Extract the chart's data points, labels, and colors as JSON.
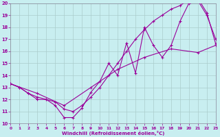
{
  "xlabel": "Windchill (Refroidissement éolien,°C)",
  "bg_color": "#c8eef0",
  "grid_color": "#aacccc",
  "line_color": "#990099",
  "xlim_min": 0,
  "xlim_max": 23,
  "ylim_min": 10,
  "ylim_max": 20,
  "xticks": [
    0,
    1,
    2,
    3,
    4,
    5,
    6,
    7,
    8,
    9,
    10,
    11,
    12,
    13,
    14,
    15,
    16,
    17,
    18,
    19,
    20,
    21,
    22,
    23
  ],
  "yticks": [
    10,
    11,
    12,
    13,
    14,
    15,
    16,
    17,
    18,
    19,
    20
  ],
  "line1_x": [
    0,
    1,
    2,
    3,
    4,
    5,
    6,
    7,
    8,
    9,
    10,
    11,
    12,
    13,
    14,
    15,
    16,
    17,
    18,
    19,
    20,
    21,
    22,
    23
  ],
  "line1_y": [
    13.3,
    13.0,
    12.5,
    12.0,
    12.0,
    11.5,
    10.5,
    10.5,
    11.3,
    12.6,
    13.5,
    15.0,
    14.0,
    16.7,
    14.2,
    18.0,
    16.5,
    15.5,
    16.5,
    18.5,
    20.0,
    20.2,
    19.0,
    17.0
  ],
  "line2_x": [
    0,
    1,
    2,
    3,
    4,
    5,
    6,
    7,
    8,
    9,
    10,
    11,
    12,
    13,
    14,
    15,
    16,
    17,
    18,
    19,
    20,
    21,
    22,
    23
  ],
  "line2_y": [
    13.3,
    13.0,
    12.5,
    12.2,
    12.0,
    11.8,
    11.2,
    11.0,
    11.5,
    12.2,
    13.0,
    14.0,
    15.0,
    16.0,
    17.0,
    17.8,
    18.5,
    19.0,
    19.5,
    19.8,
    20.3,
    20.4,
    19.2,
    16.6
  ],
  "line3_x": [
    0,
    3,
    6,
    9,
    12,
    15,
    18,
    21,
    23
  ],
  "line3_y": [
    13.3,
    12.5,
    11.5,
    13.0,
    14.5,
    15.5,
    16.2,
    15.9,
    16.5
  ]
}
